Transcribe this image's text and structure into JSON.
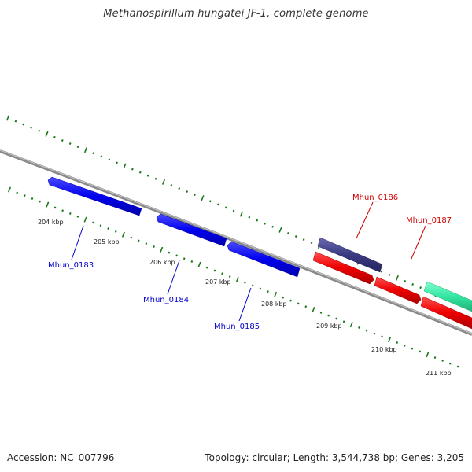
{
  "title": "Methanospirillum hungatei JF-1, complete genome",
  "footer": {
    "accession": "Accession: NC_007796",
    "summary": "Topology: circular; Length: 3,544,738 bp; Genes: 3,205"
  },
  "colors": {
    "backbone": "#888888",
    "tick": "#1a7a1a",
    "forward_gene": "#0000ee",
    "reverse_gene": "#ee0000",
    "gene_186": "#3a3a80",
    "green_gene": "#33e6a0"
  },
  "kbp_labels": [
    "204 kbp",
    "205 kbp",
    "206 kbp",
    "207 kbp",
    "208 kbp",
    "209 kbp",
    "210 kbp",
    "211 kbp"
  ],
  "genes": [
    {
      "name": "Mhun_0183",
      "color": "#0000ee"
    },
    {
      "name": "Mhun_0184",
      "color": "#0000ee"
    },
    {
      "name": "Mhun_0185",
      "color": "#0000ee"
    },
    {
      "name": "Mhun_0186",
      "color": "#cc0000"
    },
    {
      "name": "Mhun_0187",
      "color": "#cc0000"
    }
  ]
}
